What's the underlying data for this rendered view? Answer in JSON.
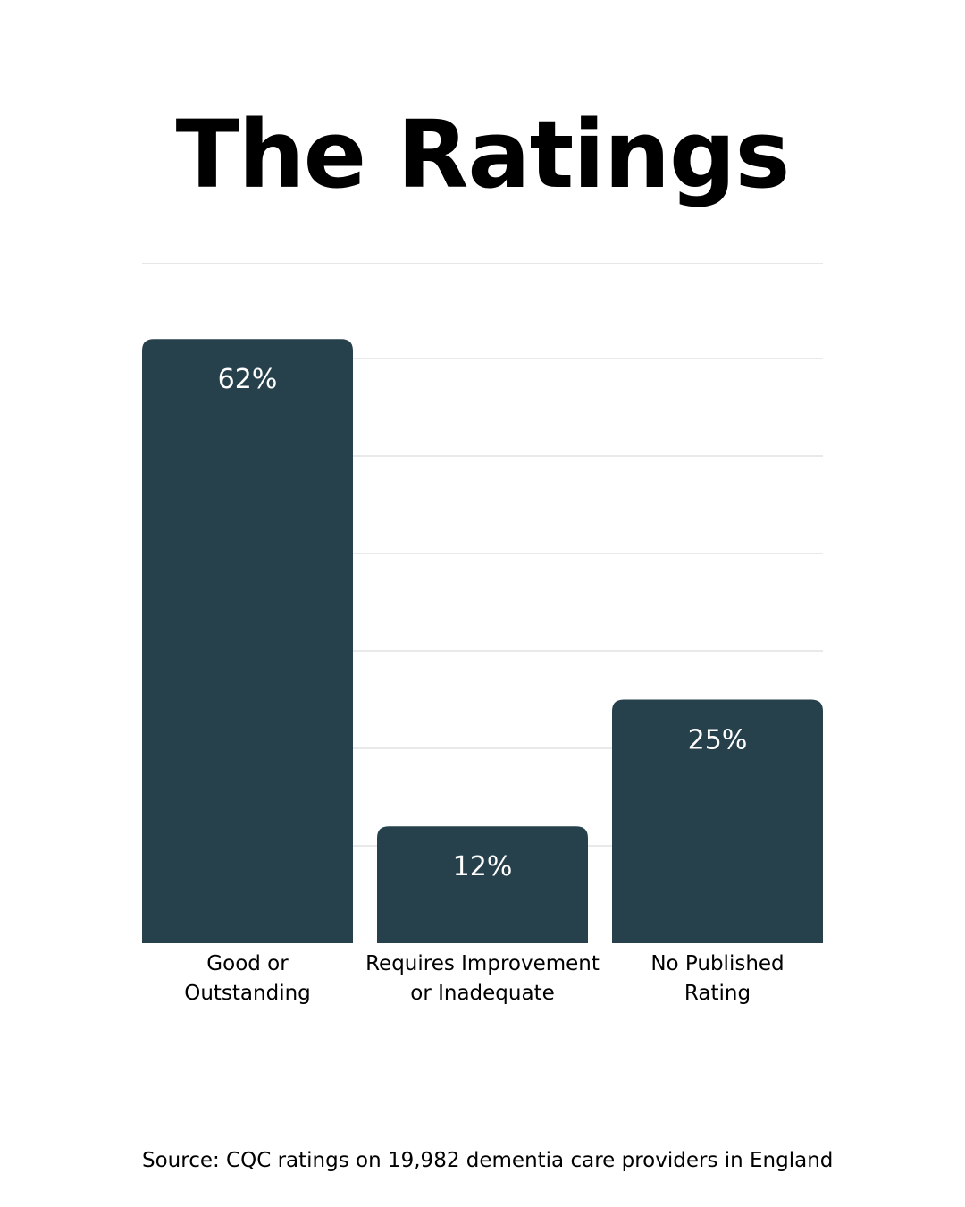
{
  "title": "The Ratings",
  "source": "Source: CQC ratings on 19,982 dementia care providers in England",
  "colors": {
    "bar": "#26414B",
    "gridline": "#d3d3d3",
    "background": "#ffffff"
  },
  "chart_data": {
    "type": "bar",
    "categories": [
      [
        "Good or",
        "Outstanding"
      ],
      [
        "Requires Improvement",
        "or Inadequate"
      ],
      [
        "No Published",
        "Rating"
      ]
    ],
    "values": [
      62,
      12,
      25
    ],
    "value_labels": [
      "62%",
      "12%",
      "25%"
    ],
    "ylim": [
      0,
      60
    ],
    "grid": true,
    "legend": "none"
  }
}
